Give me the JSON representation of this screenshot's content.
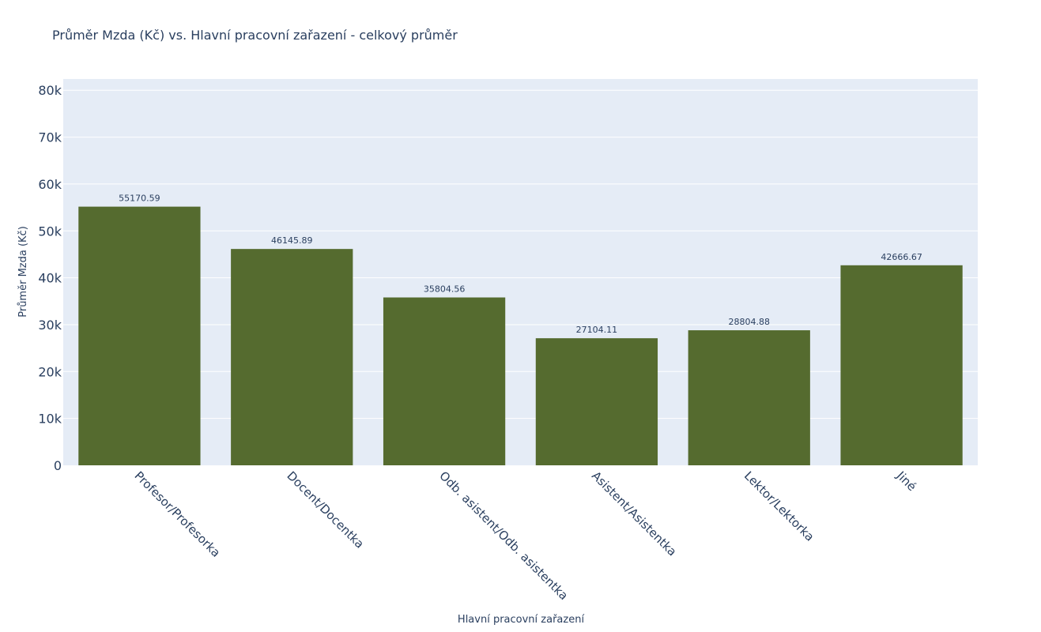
{
  "chart_data": {
    "type": "bar",
    "title": "Průměr Mzda (Kč) vs. Hlavní pracovní zařazení - celkový průměr",
    "xlabel": "Hlavní pracovní zařazení",
    "ylabel": "Průměr Mzda (Kč)",
    "categories": [
      "Profesor/Profesorka",
      "Docent/Docentka",
      "Odb. asistent/Odb. asistentka",
      "Asistent/Asistentka",
      "Lektor/Lektorka",
      "Jiné"
    ],
    "values": [
      55170.59,
      46145.89,
      35804.56,
      27104.11,
      28804.88,
      42666.67
    ],
    "value_labels": [
      "55170.59",
      "46145.89",
      "35804.56",
      "27104.11",
      "28804.88",
      "42666.67"
    ],
    "ylim": [
      0,
      82400
    ],
    "yticks": [
      0,
      10000,
      20000,
      30000,
      40000,
      50000,
      60000,
      70000,
      80000
    ],
    "ytick_labels": [
      "0",
      "10k",
      "20k",
      "30k",
      "40k",
      "50k",
      "60k",
      "70k",
      "80k"
    ],
    "grid": true,
    "colors": {
      "bar": "#556b2f",
      "plot_bg": "#e5ecf6",
      "grid": "#ffffff",
      "text": "#2a3f5f"
    }
  }
}
